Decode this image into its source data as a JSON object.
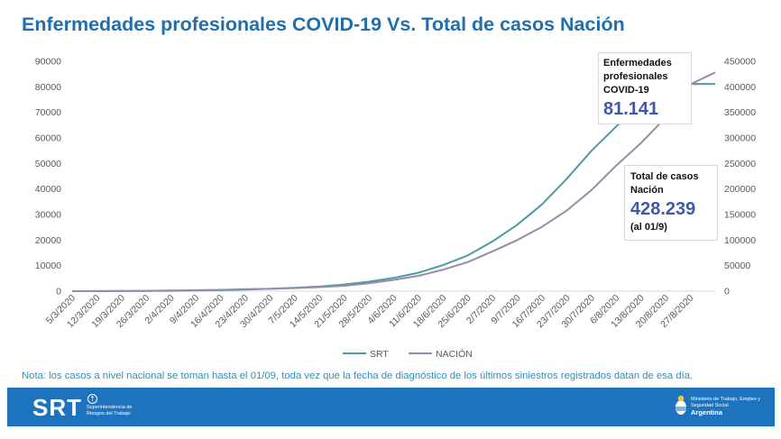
{
  "title": "Enfermedades profesionales COVID-19 Vs. Total de casos Nación",
  "chart_data": {
    "type": "line",
    "title": "Enfermedades profesionales COVID-19 Vs. Total de casos Nación",
    "x_tick_labels": [
      "5/3/2020",
      "12/3/2020",
      "19/3/2020",
      "26/3/2020",
      "2/4/2020",
      "9/4/2020",
      "16/4/2020",
      "23/4/2020",
      "30/4/2020",
      "7/5/2020",
      "14/5/2020",
      "21/5/2020",
      "28/5/2020",
      "4/6/2020",
      "11/6/2020",
      "18/6/2020",
      "25/6/2020",
      "2/7/2020",
      "9/7/2020",
      "16/7/2020",
      "23/7/2020",
      "30/7/2020",
      "6/8/2020",
      "13/8/2020",
      "20/8/2020",
      "27/8/2020"
    ],
    "x_last": "1/9/2020",
    "y_left": {
      "ticks": [
        0,
        10000,
        20000,
        30000,
        40000,
        50000,
        60000,
        70000,
        80000,
        90000
      ],
      "ylim": [
        0,
        90000
      ]
    },
    "y_right": {
      "ticks": [
        0,
        50000,
        100000,
        150000,
        200000,
        250000,
        300000,
        350000,
        400000,
        450000
      ],
      "ylim": [
        0,
        450000
      ]
    },
    "legend_position": "bottom",
    "series": [
      {
        "name": "SRT",
        "axis": "left",
        "color": "#4a9ba6",
        "values": [
          0,
          20,
          50,
          100,
          150,
          250,
          400,
          600,
          900,
          1300,
          1800,
          2600,
          3700,
          5200,
          7200,
          10200,
          14000,
          19500,
          26000,
          34000,
          44000,
          55000,
          64500,
          73500,
          79500,
          81141,
          81141
        ]
      },
      {
        "name": "NACIÓN",
        "axis": "right",
        "color": "#9b89a6",
        "values": [
          2,
          30,
          500,
          700,
          1200,
          1900,
          2700,
          3900,
          4500,
          6000,
          7900,
          10600,
          15400,
          22000,
          30000,
          42000,
          57000,
          78000,
          100000,
          126000,
          158000,
          198000,
          246000,
          290000,
          340000,
          405000,
          428239
        ]
      }
    ],
    "annotations": {
      "srt": {
        "label": "Enfermedades profesionales COVID-19",
        "value": "81.141"
      },
      "nacion": {
        "label": "Total de casos Nación",
        "value": "428.239",
        "date": "(al 01/9)"
      }
    }
  },
  "note": "Nota: los casos a nivel nacional se toman hasta el 01/09, toda vez que la fecha de diagnóstico de los últimos siniestros registrados datan de esa día.",
  "footer": {
    "logo": "SRT",
    "logo_sub": "Superintendencia de Riesgos del Trabajo",
    "ministry": "Ministerio de Trabajo, Empleo y Seguridad Social",
    "country": "Argentina",
    "colors": {
      "bar": "#1e73be",
      "title": "#1f6fae"
    }
  }
}
